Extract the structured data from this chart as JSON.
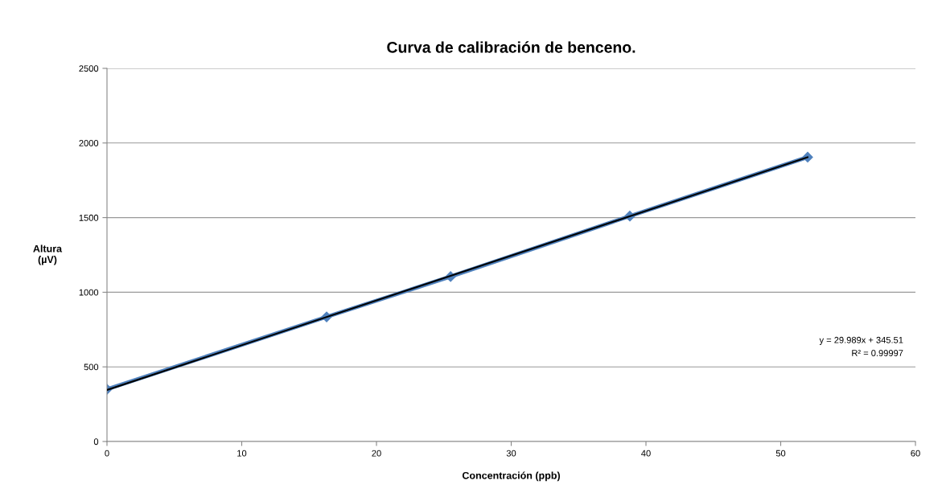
{
  "chart_data": {
    "type": "line",
    "title": "Curva de calibración de benceno.",
    "xlabel": "Concentración (ppb)",
    "ylabel": "Altura\n(µV)",
    "series": [
      {
        "color": "#4f81bd",
        "marker": "diamond",
        "x": [
          0,
          16.3,
          25.5,
          38.8,
          52
        ],
        "values": [
          350,
          835,
          1105,
          1510,
          1905
        ]
      },
      {
        "color": "#000000",
        "marker": "none",
        "x": [
          0,
          52
        ],
        "values": [
          345,
          1905
        ]
      }
    ],
    "annotations": [
      "y = 29.989x + 345.51",
      "R² = 0.99997"
    ],
    "xlim": [
      0,
      60
    ],
    "xticks": [
      0,
      10,
      20,
      30,
      40,
      50,
      60
    ],
    "ylim": [
      0,
      2500
    ],
    "yticks": [
      0,
      500,
      1000,
      1500,
      2000,
      2500
    ],
    "grid": "y",
    "legend": false
  }
}
